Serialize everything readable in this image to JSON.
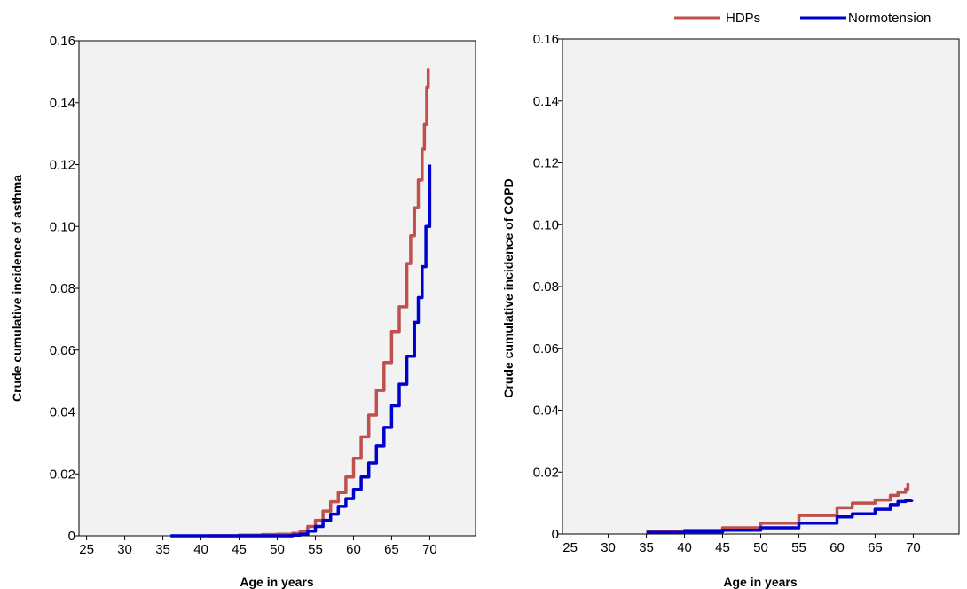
{
  "legend": [
    {
      "label": "HDPs",
      "color": "#c0504d"
    },
    {
      "label": "Normotension",
      "color": "#0000cc"
    }
  ],
  "chart_data": [
    {
      "type": "line",
      "title": "",
      "xlabel": "Age in years",
      "ylabel": "Crude cumulative incidence of asthma",
      "xlim": [
        24,
        76
      ],
      "ylim": [
        0,
        0.16
      ],
      "xticks": [
        25,
        30,
        35,
        40,
        45,
        50,
        55,
        60,
        65,
        70
      ],
      "yticks": [
        0,
        0.02,
        0.04,
        0.06,
        0.08,
        0.1,
        0.12,
        0.14,
        0.16
      ],
      "ytick_labels": [
        "0",
        "0.02",
        "0.04",
        "0.06",
        "0.08",
        "0.10",
        "0.12",
        "0.14",
        "0.16"
      ],
      "grid": false,
      "series": [
        {
          "name": "HDPs",
          "color": "#c0504d",
          "x": [
            41,
            45,
            48,
            50,
            52,
            53,
            54,
            55,
            56,
            57,
            58,
            59,
            60,
            61,
            62,
            63,
            64,
            65,
            66,
            67,
            67.5,
            68,
            68.5,
            69,
            69.3,
            69.6,
            69.8
          ],
          "y": [
            0,
            0.0002,
            0.0004,
            0.0005,
            0.0008,
            0.0015,
            0.003,
            0.005,
            0.008,
            0.011,
            0.014,
            0.019,
            0.025,
            0.032,
            0.039,
            0.047,
            0.056,
            0.066,
            0.074,
            0.088,
            0.097,
            0.106,
            0.115,
            0.125,
            0.133,
            0.145,
            0.151
          ]
        },
        {
          "name": "Normotension",
          "color": "#0000cc",
          "x": [
            36,
            40,
            45,
            50,
            52,
            53,
            54,
            55,
            56,
            57,
            58,
            59,
            60,
            61,
            62,
            63,
            64,
            65,
            66,
            67,
            68,
            68.5,
            69,
            69.5,
            70
          ],
          "y": [
            0,
            0,
            0,
            0,
            0.0002,
            0.0005,
            0.0015,
            0.003,
            0.005,
            0.007,
            0.0095,
            0.012,
            0.015,
            0.019,
            0.0235,
            0.029,
            0.035,
            0.042,
            0.049,
            0.058,
            0.069,
            0.077,
            0.087,
            0.1,
            0.12
          ]
        }
      ]
    },
    {
      "type": "line",
      "title": "",
      "xlabel": "Age in years",
      "ylabel": "Crude cumulative incidence of COPD",
      "xlim": [
        24,
        76
      ],
      "ylim": [
        0,
        0.16
      ],
      "xticks": [
        25,
        30,
        35,
        40,
        45,
        50,
        55,
        60,
        65,
        70
      ],
      "yticks": [
        0,
        0.02,
        0.04,
        0.06,
        0.08,
        0.1,
        0.12,
        0.14,
        0.16
      ],
      "ytick_labels": [
        "0",
        "0.02",
        "0.04",
        "0.06",
        "0.08",
        "0.10",
        "0.12",
        "0.14",
        "0.16"
      ],
      "grid": false,
      "series": [
        {
          "name": "HDPs",
          "color": "#c0504d",
          "x": [
            35,
            40,
            45,
            50,
            55,
            60,
            62,
            65,
            67,
            68,
            69,
            69.3
          ],
          "y": [
            0.0008,
            0.0012,
            0.002,
            0.0035,
            0.006,
            0.0085,
            0.01,
            0.011,
            0.0125,
            0.0135,
            0.0145,
            0.0165
          ]
        },
        {
          "name": "Normotension",
          "color": "#0000cc",
          "x": [
            35,
            40,
            45,
            50,
            55,
            60,
            62,
            65,
            67,
            68,
            69,
            69.8
          ],
          "y": [
            0.0005,
            0.0007,
            0.0012,
            0.002,
            0.0035,
            0.0055,
            0.0065,
            0.008,
            0.0095,
            0.0105,
            0.0108,
            0.011
          ]
        }
      ]
    }
  ]
}
